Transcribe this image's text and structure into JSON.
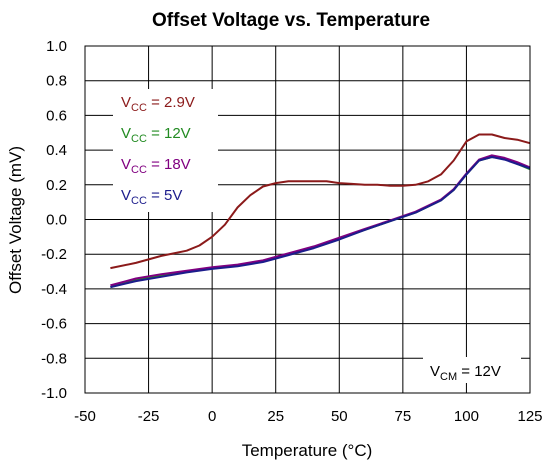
{
  "chart_data": {
    "type": "line",
    "title": "Offset Voltage vs. Temperature",
    "xlabel": "Temperature (°C)",
    "ylabel": "Offset Voltage (mV)",
    "xlim": [
      -50,
      125
    ],
    "ylim": [
      -1.0,
      1.0
    ],
    "x_ticks": [
      -50,
      -25,
      0,
      25,
      50,
      75,
      100,
      125
    ],
    "y_ticks": [
      -1.0,
      -0.8,
      -0.6,
      -0.4,
      -0.2,
      0.0,
      0.2,
      0.4,
      0.6,
      0.8,
      1.0
    ],
    "x_tick_labels": [
      "-50",
      "-25",
      "0",
      "25",
      "50",
      "75",
      "100",
      "125"
    ],
    "y_tick_labels": [
      "-1.0",
      "-0.8",
      "-0.6",
      "-0.4",
      "-0.2",
      "0.0",
      "0.2",
      "0.4",
      "0.6",
      "0.8",
      "1.0"
    ],
    "grid": true,
    "legend_position": "top-left",
    "series": [
      {
        "name": "VCC = 2.9V",
        "label_main": "V",
        "label_sub": "CC",
        "label_rest": " = 2.9V",
        "color": "#8b1a1a",
        "x": [
          -40,
          -30,
          -20,
          -10,
          -5,
          0,
          5,
          10,
          15,
          20,
          25,
          30,
          35,
          40,
          45,
          50,
          55,
          60,
          65,
          70,
          75,
          80,
          85,
          90,
          95,
          100,
          105,
          110,
          115,
          120,
          125
        ],
        "y": [
          -0.28,
          -0.25,
          -0.21,
          -0.18,
          -0.15,
          -0.1,
          -0.03,
          0.07,
          0.14,
          0.19,
          0.21,
          0.22,
          0.22,
          0.22,
          0.22,
          0.21,
          0.205,
          0.2,
          0.2,
          0.195,
          0.195,
          0.2,
          0.22,
          0.26,
          0.34,
          0.45,
          0.49,
          0.49,
          0.47,
          0.46,
          0.44
        ]
      },
      {
        "name": "VCC = 12V",
        "label_main": "V",
        "label_sub": "CC",
        "label_rest": " = 12V",
        "color": "#228b22",
        "x": [
          -40,
          -30,
          -20,
          -10,
          0,
          10,
          20,
          30,
          40,
          50,
          60,
          70,
          80,
          90,
          95,
          100,
          105,
          110,
          115,
          120,
          125
        ],
        "y": [
          -0.39,
          -0.35,
          -0.325,
          -0.3,
          -0.28,
          -0.265,
          -0.24,
          -0.2,
          -0.16,
          -0.11,
          -0.06,
          -0.01,
          0.04,
          0.11,
          0.17,
          0.26,
          0.34,
          0.36,
          0.35,
          0.32,
          0.29
        ]
      },
      {
        "name": "VCC = 18V",
        "label_main": "V",
        "label_sub": "CC",
        "label_rest": " = 18V",
        "color": "#800080",
        "x": [
          -40,
          -30,
          -20,
          -10,
          0,
          10,
          20,
          30,
          40,
          50,
          60,
          70,
          80,
          90,
          95,
          100,
          105,
          110,
          115,
          120,
          125
        ],
        "y": [
          -0.38,
          -0.34,
          -0.315,
          -0.295,
          -0.275,
          -0.26,
          -0.235,
          -0.195,
          -0.155,
          -0.105,
          -0.055,
          -0.005,
          0.045,
          0.115,
          0.175,
          0.265,
          0.345,
          0.37,
          0.355,
          0.33,
          0.3
        ]
      },
      {
        "name": "VCC = 5V",
        "label_main": "V",
        "label_sub": "CC",
        "label_rest": " = 5V",
        "color": "#1c1c8c",
        "x": [
          -40,
          -30,
          -20,
          -10,
          0,
          10,
          20,
          30,
          40,
          50,
          60,
          70,
          80,
          90,
          95,
          100,
          105,
          110,
          115,
          120,
          125
        ],
        "y": [
          -0.39,
          -0.355,
          -0.33,
          -0.305,
          -0.285,
          -0.27,
          -0.245,
          -0.205,
          -0.165,
          -0.115,
          -0.06,
          -0.01,
          0.04,
          0.11,
          0.17,
          0.26,
          0.34,
          0.36,
          0.345,
          0.32,
          0.295
        ]
      }
    ],
    "annotation": {
      "main": "V",
      "sub": "CM",
      "rest": " = 12V"
    }
  }
}
